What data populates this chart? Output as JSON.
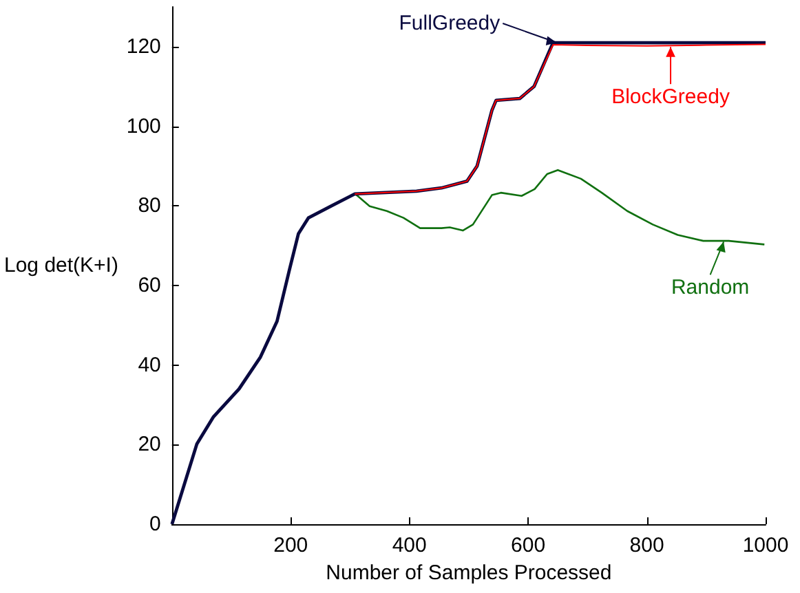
{
  "chart_data": {
    "type": "line",
    "xlabel": "Number of Samples Processed",
    "ylabel": "Log det(K+I)",
    "xlim": [
      0,
      1000
    ],
    "ylim": [
      0,
      130
    ],
    "xticks": [
      200,
      400,
      600,
      800,
      1000
    ],
    "yticks": [
      0,
      20,
      40,
      60,
      80,
      100,
      120
    ],
    "grid": false,
    "legend": "right",
    "marker": "none",
    "line_style": "solid",
    "series": [
      {
        "name": "Random",
        "color": "#107010",
        "x": [
          308,
          311,
          333,
          362,
          390,
          418,
          454,
          468,
          490,
          507,
          539,
          554,
          589,
          611,
          632,
          650,
          689,
          724,
          767,
          810,
          852,
          895,
          938,
          998
        ],
        "values": [
          83,
          82.7,
          79.9,
          78.7,
          77,
          74.4,
          74.4,
          74.6,
          73.8,
          75.3,
          82.7,
          83.3,
          82.5,
          84.2,
          88,
          89,
          86.8,
          83.3,
          78.7,
          75.3,
          72.7,
          71.2,
          71.2,
          70.3
        ]
      },
      {
        "name": "FullGreedy",
        "color": "#0a0a40",
        "x": [
          0,
          42,
          70,
          113,
          149,
          177,
          198,
          213,
          230,
          269,
          308,
          412,
          454,
          497,
          514,
          539,
          546,
          586,
          610,
          642,
          1000
        ],
        "values": [
          0,
          20.2,
          27,
          34,
          42,
          51,
          64,
          73,
          77,
          80,
          83,
          83.7,
          84.5,
          86.2,
          90,
          104,
          106.5,
          107,
          110,
          121,
          121
        ]
      },
      {
        "name": "BlockGreedy",
        "color": "#ff0000",
        "x": [
          308,
          412,
          454,
          497,
          514,
          539,
          546,
          586,
          610,
          642,
          700,
          800,
          900,
          1000
        ],
        "values": [
          83,
          83.7,
          84.5,
          86.2,
          90,
          104,
          106.5,
          107,
          110,
          120.5,
          120.3,
          120.2,
          120.4,
          120.6
        ]
      }
    ]
  }
}
